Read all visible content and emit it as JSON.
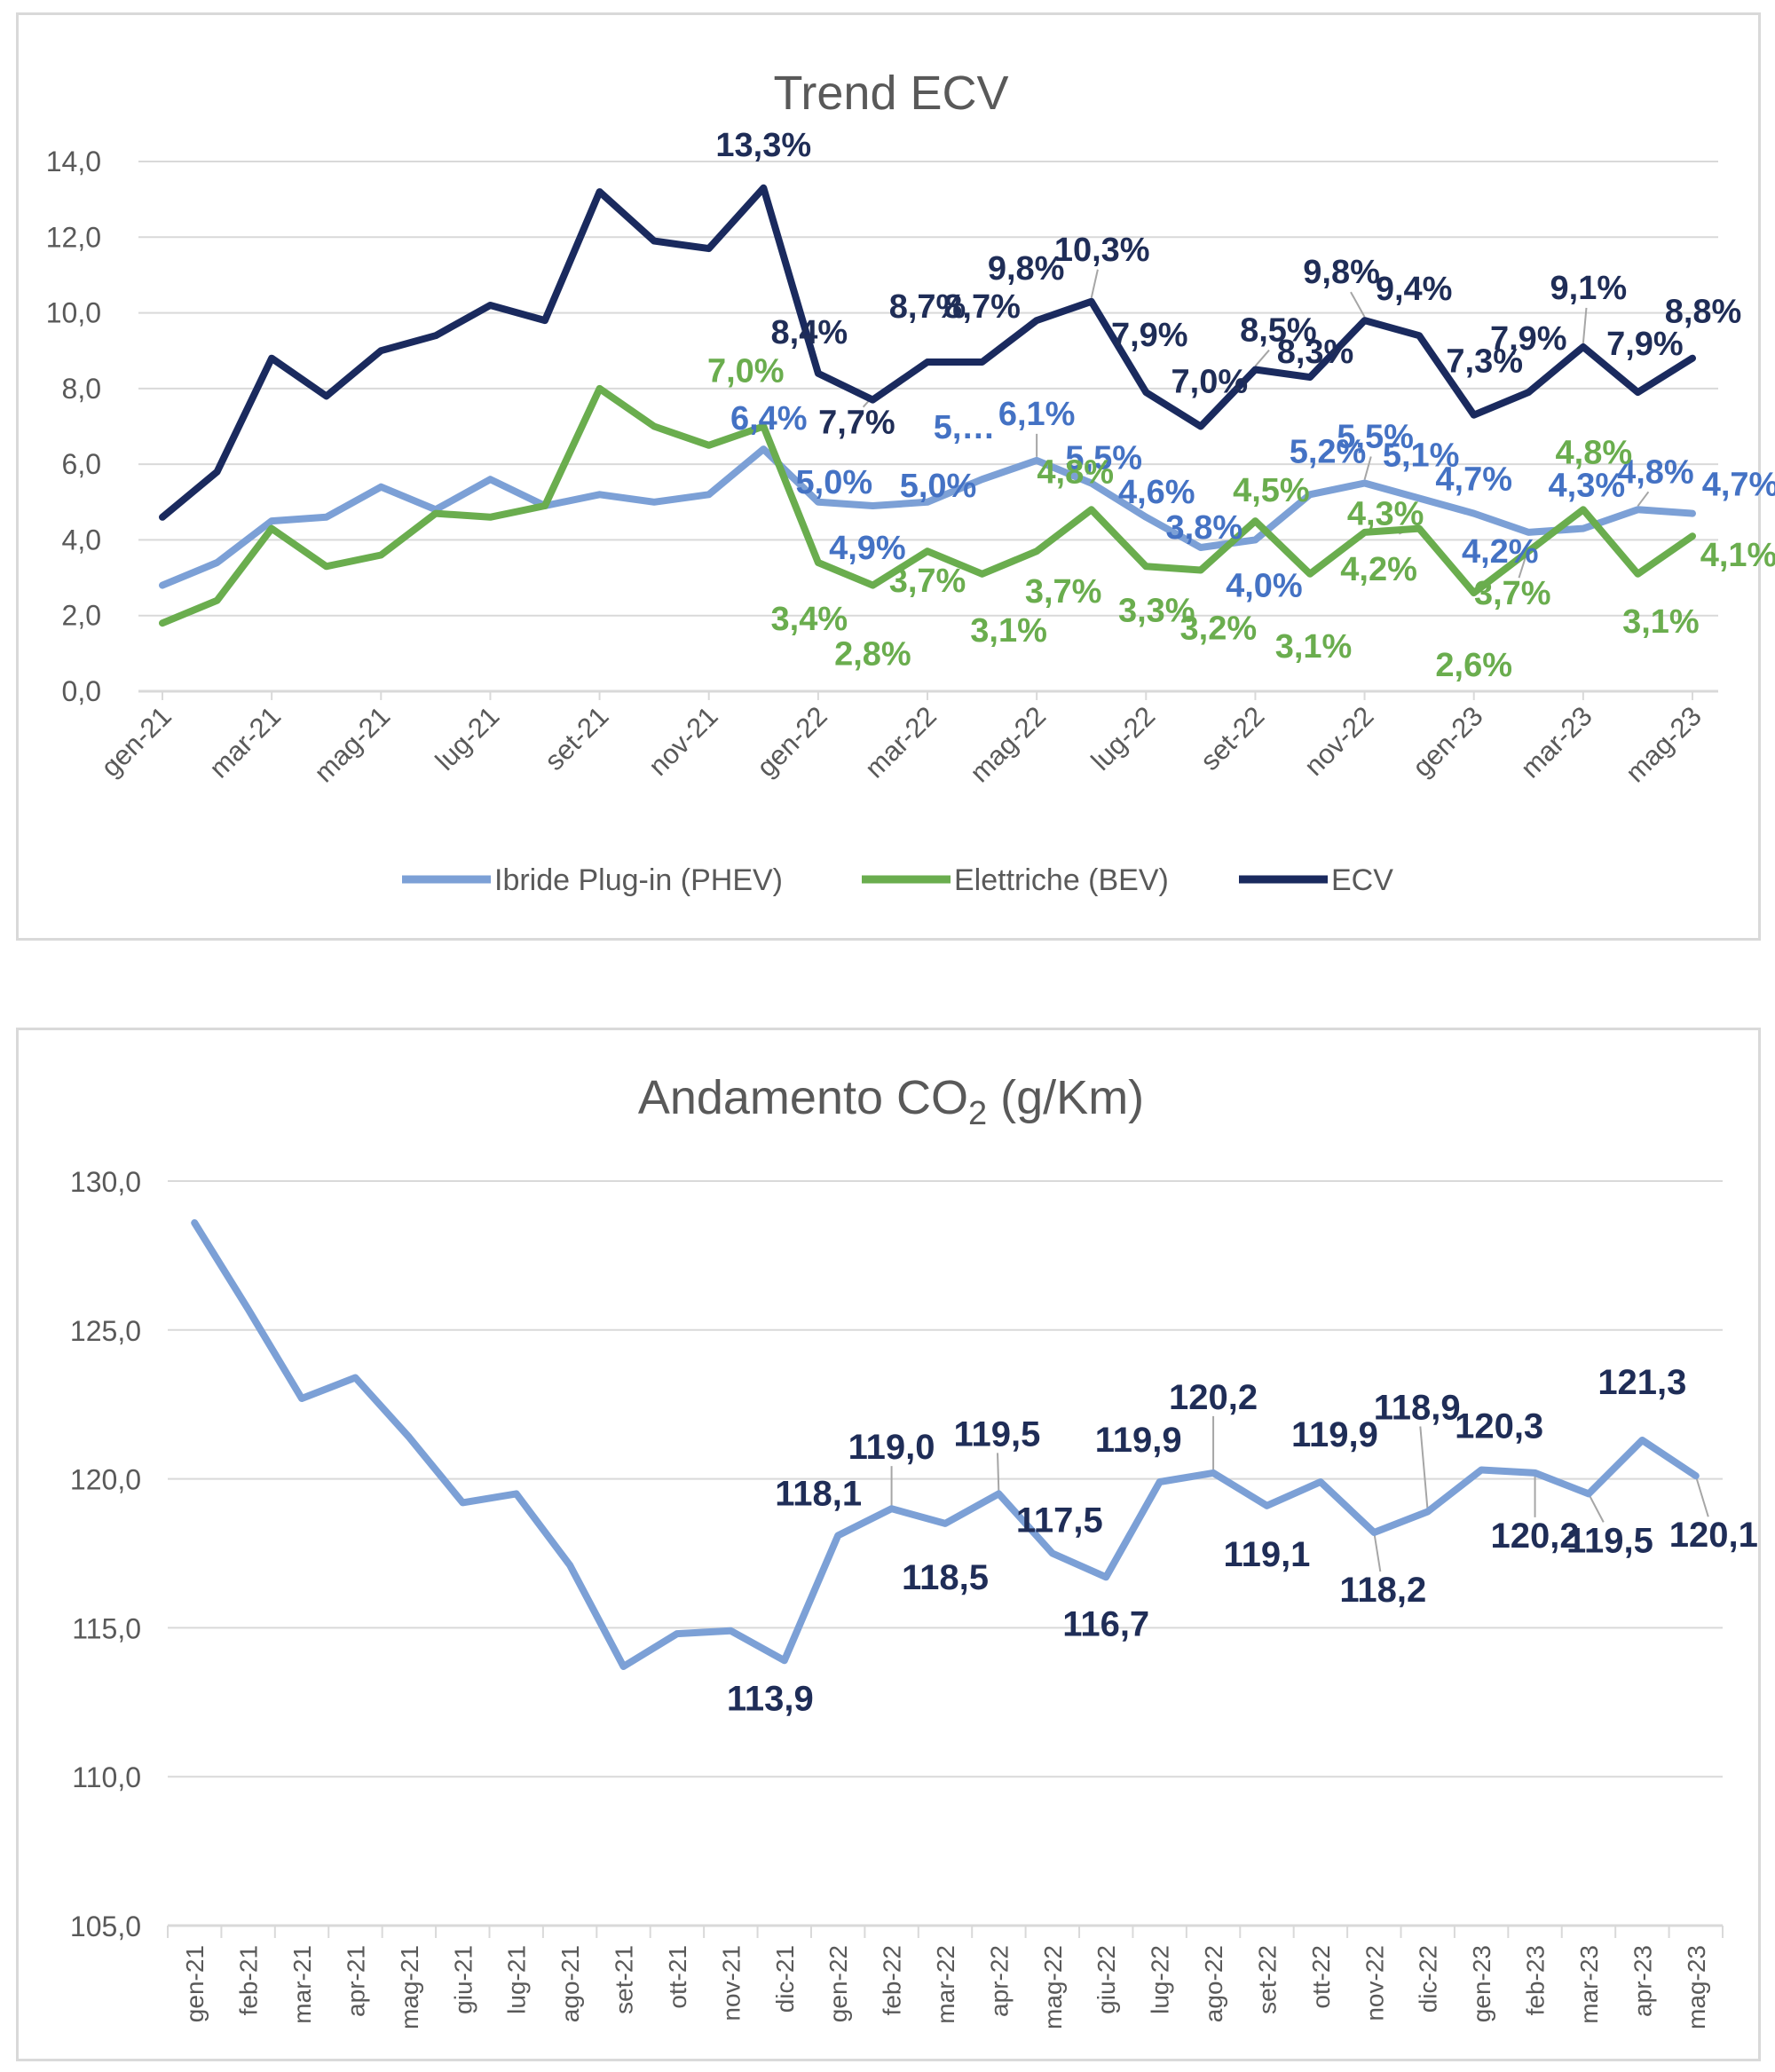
{
  "colors": {
    "phev": "#7ca0d6",
    "bev": "#6aad4e",
    "ecv": "#1a2a5e",
    "co2": "#7ca0d6",
    "grid": "#d9d9d9",
    "text": "#595959",
    "label_dark": "#1f2d57",
    "label_phev": "#4472c4",
    "label_bev": "#6aad4e"
  },
  "chart_data": [
    {
      "type": "line",
      "title": "Trend ECV",
      "x": [
        "gen-21",
        "feb-21",
        "mar-21",
        "apr-21",
        "mag-21",
        "giu-21",
        "lug-21",
        "ago-21",
        "set-21",
        "ott-21",
        "nov-21",
        "dic-21",
        "gen-22",
        "feb-22",
        "mar-22",
        "apr-22",
        "mag-22",
        "giu-22",
        "lug-22",
        "ago-22",
        "set-22",
        "ott-22",
        "nov-22",
        "dic-22",
        "gen-23",
        "feb-23",
        "mar-23",
        "apr-23",
        "mag-23"
      ],
      "x_tick_labels": [
        "gen-21",
        "mar-21",
        "mag-21",
        "lug-21",
        "set-21",
        "nov-21",
        "gen-22",
        "mar-22",
        "mag-22",
        "lug-22",
        "set-22",
        "nov-22",
        "gen-23",
        "mar-23",
        "mag-23"
      ],
      "ylim": [
        0,
        14
      ],
      "y_ticks": [
        "0,0",
        "2,0",
        "4,0",
        "6,0",
        "8,0",
        "10,0",
        "12,0",
        "14,0"
      ],
      "grid": true,
      "legend_position": "bottom",
      "series": [
        {
          "name": "Ibride Plug-in (PHEV)",
          "key": "phev",
          "values": [
            2.8,
            3.4,
            4.5,
            4.6,
            5.4,
            4.8,
            5.6,
            4.9,
            5.2,
            5.0,
            5.2,
            6.4,
            5.0,
            4.9,
            5.0,
            5.6,
            6.1,
            5.5,
            4.6,
            3.8,
            4.0,
            5.2,
            5.5,
            5.1,
            4.7,
            4.2,
            4.3,
            4.8,
            4.7
          ],
          "labels": [
            null,
            null,
            null,
            null,
            null,
            null,
            null,
            null,
            null,
            null,
            null,
            "6,4%",
            "5,0%",
            "4,9%",
            "5,0%",
            "5,…",
            "6,1%",
            "5,5%",
            "4,6%",
            "3,8%",
            "4,0%",
            "5,2%",
            "5,5%",
            "5,1%",
            "4,7%",
            "4,2%",
            "4,3%",
            "4,8%",
            "4,7%"
          ]
        },
        {
          "name": "Elettriche (BEV)",
          "key": "bev",
          "values": [
            1.8,
            2.4,
            4.3,
            3.3,
            3.6,
            4.7,
            4.6,
            4.9,
            8.0,
            7.0,
            6.5,
            7.0,
            3.4,
            2.8,
            3.7,
            3.1,
            3.7,
            4.8,
            3.3,
            3.2,
            4.5,
            3.1,
            4.2,
            4.3,
            2.6,
            3.7,
            4.8,
            3.1,
            4.1
          ],
          "labels": [
            null,
            null,
            null,
            null,
            null,
            null,
            null,
            null,
            null,
            null,
            null,
            "7,0%",
            "3,4%",
            "2,8%",
            "3,7%",
            "3,1%",
            "3,7%",
            "4,8%",
            "3,3%",
            "3,2%",
            "4,5%",
            "3,1%",
            "4,2%",
            "4,3%",
            "2,6%",
            "3,7%",
            "4,8%",
            "3,1%",
            "4,1%"
          ]
        },
        {
          "name": "ECV",
          "key": "ecv",
          "values": [
            4.6,
            5.8,
            8.8,
            7.8,
            9.0,
            9.4,
            10.2,
            9.8,
            13.2,
            11.9,
            11.7,
            13.3,
            8.4,
            7.7,
            8.7,
            8.7,
            9.8,
            10.3,
            7.9,
            7.0,
            8.5,
            8.3,
            9.8,
            9.4,
            7.3,
            7.9,
            9.1,
            7.9,
            8.8
          ],
          "labels": [
            null,
            null,
            null,
            null,
            null,
            null,
            null,
            null,
            null,
            null,
            null,
            "13,3%",
            "8,4%",
            "7,7%",
            "8,7%",
            "8,7%",
            "9,8%",
            "10,3%",
            "7,9%",
            "7,0%",
            "8,5%",
            "8,3%",
            "9,8%",
            "9,4%",
            "7,3%",
            "7,9%",
            "9,1%",
            "7,9%",
            "8,8%"
          ]
        }
      ]
    },
    {
      "type": "line",
      "title_main": "Andamento CO",
      "title_sub": "2",
      "title_unit": " (g/Km)",
      "x": [
        "gen-21",
        "feb-21",
        "mar-21",
        "apr-21",
        "mag-21",
        "giu-21",
        "lug-21",
        "ago-21",
        "set-21",
        "ott-21",
        "nov-21",
        "dic-21",
        "gen-22",
        "feb-22",
        "mar-22",
        "apr-22",
        "mag-22",
        "giu-22",
        "lug-22",
        "ago-22",
        "set-22",
        "ott-22",
        "nov-22",
        "dic-22",
        "gen-23",
        "feb-23",
        "mar-23",
        "apr-23",
        "mag-23"
      ],
      "ylim": [
        105,
        130
      ],
      "y_ticks": [
        "105,0",
        "110,0",
        "115,0",
        "120,0",
        "125,0",
        "130,0"
      ],
      "grid": true,
      "series": [
        {
          "name": "CO2",
          "key": "co2",
          "values": [
            128.6,
            125.7,
            122.7,
            123.4,
            121.4,
            119.2,
            119.5,
            117.1,
            113.7,
            114.8,
            114.9,
            113.9,
            118.1,
            119.0,
            118.5,
            119.5,
            117.5,
            116.7,
            119.9,
            120.2,
            119.1,
            119.9,
            118.2,
            118.9,
            120.3,
            120.2,
            119.5,
            121.3,
            120.1
          ],
          "labels": [
            null,
            null,
            null,
            null,
            null,
            null,
            null,
            null,
            null,
            null,
            null,
            "113,9",
            "118,1",
            "119,0",
            "118,5",
            "119,5",
            "117,5",
            "116,7",
            "119,9",
            "120,2",
            "119,1",
            "119,9",
            "118,2",
            "118,9",
            "120,3",
            "120,2",
            "119,5",
            "121,3",
            "120,1"
          ]
        }
      ]
    }
  ]
}
